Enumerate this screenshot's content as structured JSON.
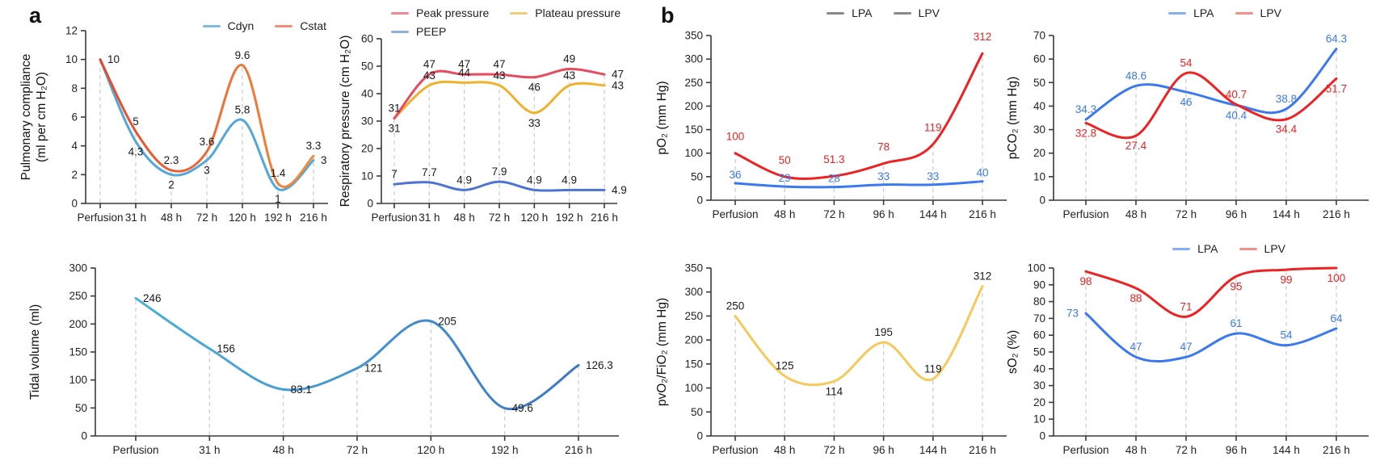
{
  "figure": {
    "panel_a_label": "a",
    "panel_b_label": "b"
  },
  "chart_data": [
    {
      "type": "line",
      "name": "pulmonary-compliance",
      "ylabel": "Pulmonary compliance\n(ml per cm H₂O)",
      "xlabel": "",
      "ylim": [
        0,
        12
      ],
      "ytick_step": 2,
      "grid": "dashed-vertical",
      "legend_position": "top-right",
      "categories": [
        "Perfusion",
        "31 h",
        "48 h",
        "72 h",
        "120 h",
        "192 h",
        "216 h"
      ],
      "legend": [
        {
          "label": "Cdyn",
          "color": "#7FBCE0"
        },
        {
          "label": "Cstat",
          "color": "#F2917A"
        }
      ],
      "series": [
        {
          "name": "Cdyn",
          "color": "#52A9D9",
          "values": [
            10,
            4.3,
            2,
            3,
            5.8,
            1,
            3
          ],
          "labels": [
            null,
            "4.3",
            "2",
            "3",
            "5.8",
            "1",
            "3"
          ],
          "sides": [
            null,
            "below",
            "below",
            "below",
            "above",
            "below",
            "right"
          ]
        },
        {
          "name": "Cstat",
          "color": "#F0703C",
          "gradient": [
            "#E2452D",
            "#F5913C"
          ],
          "values": [
            10,
            5,
            2.3,
            3.6,
            9.6,
            1.4,
            3.3
          ],
          "labels": [
            "10",
            "5",
            "2.3",
            "3.6",
            "9.6",
            "1.4",
            "3.3"
          ],
          "sides": [
            "right",
            "above",
            "above",
            "above",
            "above",
            "above",
            "above"
          ]
        }
      ]
    },
    {
      "type": "line",
      "name": "respiratory-pressure",
      "ylabel": "Respiratory pressure (cm H₂O)",
      "xlabel": "",
      "ylim": [
        0,
        60
      ],
      "ytick_step": 10,
      "grid": "dashed-vertical",
      "legend_position": "top-center",
      "categories": [
        "Perfusion",
        "31 h",
        "48 h",
        "72 h",
        "120 h",
        "192 h",
        "216 h"
      ],
      "legend": [
        {
          "label": "Peak pressure",
          "color": "#EE8796"
        },
        {
          "label": "Plateau pressure",
          "color": "#F3CC7A"
        },
        {
          "label": "PEEP",
          "color": "#93ACE4"
        }
      ],
      "series": [
        {
          "name": "PEEP",
          "color": "#4D74D2",
          "values": [
            7,
            7.7,
            4.9,
            7.9,
            4.9,
            4.9,
            4.9
          ],
          "labels": [
            "7",
            "7.7",
            "4.9",
            "7.9",
            "4.9",
            "4.9",
            "4.9"
          ],
          "sides": [
            "above",
            "above",
            "above",
            "above",
            "above",
            "above",
            "right"
          ]
        },
        {
          "name": "Plateau pressure",
          "color": "#F2B12D",
          "values": [
            31,
            43,
            44,
            43,
            33,
            43,
            43
          ],
          "labels": [
            "31",
            "43",
            "44",
            "43",
            "33",
            "43",
            "43"
          ],
          "sides": [
            "below",
            "above",
            "above",
            "above",
            "below",
            "above",
            "right"
          ]
        },
        {
          "name": "Peak pressure",
          "color": "#E84A5F",
          "values": [
            31,
            47,
            47,
            47,
            46,
            49,
            47
          ],
          "labels": [
            "31",
            "47",
            "47",
            "47",
            "46",
            "49",
            "47"
          ],
          "sides": [
            "above",
            "above",
            "above",
            "above",
            "below",
            "above",
            "right"
          ]
        }
      ]
    },
    {
      "type": "line",
      "name": "tidal-volume",
      "ylabel": "Tidal volume (ml)",
      "xlabel": "",
      "ylim": [
        0,
        300
      ],
      "ytick_step": 50,
      "grid": "dashed-vertical",
      "legend_position": "none",
      "categories": [
        "Perfusion",
        "31 h",
        "48 h",
        "72 h",
        "120 h",
        "192 h",
        "216 h"
      ],
      "legend": [],
      "series": [
        {
          "name": "Tidal volume",
          "color": "#44A0D0",
          "gradient": [
            "#4BB7D8",
            "#3C70C8"
          ],
          "values": [
            246,
            156,
            83.1,
            121,
            205,
            49.6,
            126.3
          ],
          "labels": [
            "246",
            "156",
            "83.1",
            "121",
            "205",
            "49.6",
            "126.3"
          ],
          "sides": [
            "right",
            "right",
            "right",
            "right",
            "right",
            "right",
            "right"
          ]
        }
      ]
    },
    {
      "type": "line",
      "name": "po2",
      "ylabel": "pO₂ (mm Hg)",
      "xlabel": "",
      "ylim": [
        0,
        350
      ],
      "ytick_step": 50,
      "grid": "dashed-vertical",
      "legend_position": "top-right",
      "categories": [
        "Perfusion",
        "48 h",
        "72 h",
        "96 h",
        "144 h",
        "216 h"
      ],
      "legend": [
        {
          "label": "LPA",
          "color": "#8A8A8A"
        },
        {
          "label": "LPV",
          "color": "#8A8A8A"
        }
      ],
      "series": [
        {
          "name": "LPA",
          "color": "#3B79F0",
          "label_color": "series",
          "label_dy": 6,
          "values": [
            36,
            29,
            28,
            33,
            33,
            40
          ],
          "labels": [
            "36",
            "29",
            "28",
            "33",
            "33",
            "40"
          ],
          "sides": [
            "above",
            "above",
            "above",
            "above",
            "above",
            "above"
          ]
        },
        {
          "name": "LPV",
          "color": "#EE2222",
          "label_color": "series",
          "label_dy": 16,
          "values": [
            100,
            50,
            51.3,
            78,
            119,
            312
          ],
          "labels": [
            "100",
            "50",
            "51.3",
            "78",
            "119",
            "312"
          ],
          "sides": [
            "above",
            "above",
            "above",
            "above",
            "above",
            "above"
          ]
        }
      ]
    },
    {
      "type": "line",
      "name": "pco2",
      "ylabel": "pCO₂ (mm Hg)",
      "xlabel": "",
      "ylim": [
        0,
        70
      ],
      "ytick_step": 10,
      "grid": "dashed-vertical",
      "legend_position": "top-right",
      "categories": [
        "Perfusion",
        "48 h",
        "72 h",
        "96 h",
        "144 h",
        "216 h"
      ],
      "legend": [
        {
          "label": "LPA",
          "color": "#86ACF7"
        },
        {
          "label": "LPV",
          "color": "#F58F88"
        }
      ],
      "series": [
        {
          "name": "LPA",
          "color": "#3B79F0",
          "label_color": "series",
          "values": [
            34.3,
            48.6,
            46,
            40.4,
            38.8,
            64.3
          ],
          "labels": [
            "34.3",
            "48.6",
            "46",
            "40.4",
            "38.8",
            "64.3"
          ],
          "sides": [
            "above",
            "above",
            "below",
            "below",
            "above",
            "above"
          ]
        },
        {
          "name": "LPV",
          "color": "#EE2222",
          "label_color": "series",
          "values": [
            32.8,
            27.4,
            54,
            40.7,
            34.4,
            51.7
          ],
          "labels": [
            "32.8",
            "27.4",
            "54",
            "40.7",
            "34.4",
            "51.7"
          ],
          "sides": [
            "below",
            "below",
            "above",
            "above",
            "below",
            "below"
          ]
        }
      ]
    },
    {
      "type": "line",
      "name": "pvo2-fio2",
      "ylabel": "pvO₂/FiO₂ (mm Hg)",
      "xlabel": "",
      "ylim": [
        0,
        350
      ],
      "ytick_step": 50,
      "grid": "dashed-vertical",
      "legend_position": "none",
      "categories": [
        "Perfusion",
        "48 h",
        "72 h",
        "96 h",
        "144 h",
        "216 h"
      ],
      "legend": [],
      "series": [
        {
          "name": "pvO2/FiO2",
          "color": "#F5C95B",
          "values": [
            250,
            125,
            114,
            195,
            119,
            312
          ],
          "labels": [
            "250",
            "125",
            "114",
            "195",
            "119",
            "312"
          ],
          "sides": [
            "above",
            "above",
            "below",
            "above",
            "above",
            "above"
          ]
        }
      ]
    },
    {
      "type": "line",
      "name": "so2",
      "ylabel": "sO₂ (%)",
      "xlabel": "",
      "ylim": [
        0,
        100
      ],
      "ytick_step": 10,
      "grid": "dashed-vertical",
      "legend_position": "top-right",
      "categories": [
        "Perfusion",
        "48 h",
        "72 h",
        "96 h",
        "144 h",
        "216 h"
      ],
      "legend": [
        {
          "label": "LPA",
          "color": "#86ACF7"
        },
        {
          "label": "LPV",
          "color": "#F58F88"
        }
      ],
      "series": [
        {
          "name": "LPA",
          "color": "#3B79F0",
          "label_color": "series",
          "values": [
            73,
            47,
            47,
            61,
            54,
            64
          ],
          "labels": [
            "73",
            "47",
            "47",
            "61",
            "54",
            "64"
          ],
          "sides": [
            "left",
            "above",
            "above",
            "above",
            "above",
            "above"
          ]
        },
        {
          "name": "LPV",
          "color": "#EE2222",
          "label_color": "series",
          "values": [
            98,
            88,
            71,
            95,
            99,
            100
          ],
          "labels": [
            "98",
            "88",
            "71",
            "95",
            "99",
            "100"
          ],
          "sides": [
            "below",
            "below",
            "above",
            "below",
            "below",
            "below"
          ]
        }
      ]
    }
  ]
}
